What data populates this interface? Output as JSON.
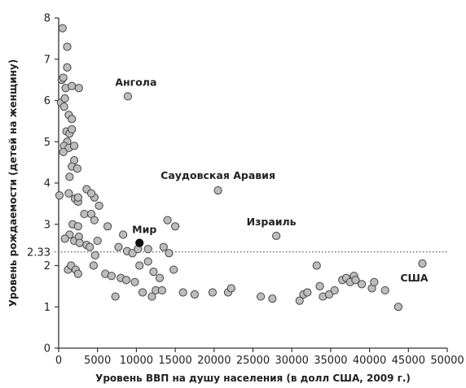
{
  "chart_data": {
    "type": "scatter",
    "title": "",
    "xlabel": "Уровень ВВП на душу населения (в долл США, 2009 г.)",
    "ylabel": "Уровень рождаемости (детей на женщину)",
    "xlim": [
      0,
      50000
    ],
    "ylim": [
      0,
      8
    ],
    "x_ticks": [
      0,
      5000,
      10000,
      15000,
      20000,
      25000,
      30000,
      35000,
      40000,
      45000,
      50000
    ],
    "y_ticks": [
      0,
      1,
      2,
      3,
      4,
      5,
      6,
      7,
      8
    ],
    "grid": false,
    "reference_line": {
      "y": 2.33,
      "label": "2.33",
      "style": "dotted"
    },
    "point_color": "#bdbdbd",
    "point_outline": "#444444",
    "highlight_color": "#111111",
    "highlight_point": {
      "label": "Мир",
      "x": 10400,
      "y": 2.55
    },
    "annotations": [
      {
        "text": "Ангола",
        "x": 8900,
        "y": 6.1
      },
      {
        "text": "Саудовская Аравия",
        "x": 20500,
        "y": 3.82
      },
      {
        "text": "Израиль",
        "x": 28000,
        "y": 2.72
      },
      {
        "text": "США",
        "x": 46800,
        "y": 2.05
      }
    ],
    "points": [
      [
        500,
        7.75
      ],
      [
        1100,
        7.3
      ],
      [
        1100,
        6.8
      ],
      [
        400,
        6.5
      ],
      [
        900,
        6.3
      ],
      [
        600,
        6.55
      ],
      [
        1700,
        6.35
      ],
      [
        2600,
        6.3
      ],
      [
        8900,
        6.1
      ],
      [
        300,
        5.95
      ],
      [
        800,
        6.05
      ],
      [
        700,
        5.85
      ],
      [
        1300,
        5.65
      ],
      [
        1700,
        5.55
      ],
      [
        1000,
        5.25
      ],
      [
        1400,
        5.2
      ],
      [
        1700,
        5.3
      ],
      [
        1100,
        5.0
      ],
      [
        700,
        4.9
      ],
      [
        1300,
        4.85
      ],
      [
        2000,
        4.9
      ],
      [
        600,
        4.75
      ],
      [
        2000,
        4.55
      ],
      [
        1700,
        4.4
      ],
      [
        2400,
        4.35
      ],
      [
        1400,
        4.15
      ],
      [
        3600,
        3.85
      ],
      [
        4600,
        3.65
      ],
      [
        1300,
        3.75
      ],
      [
        2100,
        3.62
      ],
      [
        2500,
        3.55
      ],
      [
        100,
        3.7
      ],
      [
        2500,
        3.65
      ],
      [
        4200,
        3.75
      ],
      [
        20500,
        3.82
      ],
      [
        5200,
        3.45
      ],
      [
        3300,
        3.25
      ],
      [
        4200,
        3.25
      ],
      [
        4600,
        3.1
      ],
      [
        6300,
        2.95
      ],
      [
        1800,
        3.0
      ],
      [
        2500,
        2.95
      ],
      [
        14000,
        3.1
      ],
      [
        15000,
        2.95
      ],
      [
        1400,
        2.75
      ],
      [
        800,
        2.65
      ],
      [
        2000,
        2.6
      ],
      [
        2600,
        2.7
      ],
      [
        2700,
        2.55
      ],
      [
        3600,
        2.5
      ],
      [
        4000,
        2.45
      ],
      [
        5000,
        2.6
      ],
      [
        7700,
        2.45
      ],
      [
        8300,
        2.75
      ],
      [
        8800,
        2.35
      ],
      [
        9500,
        2.3
      ],
      [
        10200,
        2.4
      ],
      [
        11500,
        2.4
      ],
      [
        13500,
        2.45
      ],
      [
        14200,
        2.3
      ],
      [
        28000,
        2.72
      ],
      [
        4700,
        2.25
      ],
      [
        10400,
        2.0
      ],
      [
        11500,
        2.1
      ],
      [
        12200,
        1.85
      ],
      [
        9800,
        1.6
      ],
      [
        13000,
        1.7
      ],
      [
        14800,
        1.9
      ],
      [
        8000,
        1.7
      ],
      [
        8700,
        1.65
      ],
      [
        6000,
        1.8
      ],
      [
        6800,
        1.75
      ],
      [
        1200,
        1.9
      ],
      [
        1600,
        2.0
      ],
      [
        2200,
        1.9
      ],
      [
        2500,
        1.8
      ],
      [
        4500,
        2.0
      ],
      [
        10800,
        1.35
      ],
      [
        12000,
        1.25
      ],
      [
        12500,
        1.4
      ],
      [
        13300,
        1.4
      ],
      [
        16000,
        1.35
      ],
      [
        17500,
        1.3
      ],
      [
        19800,
        1.35
      ],
      [
        21800,
        1.35
      ],
      [
        22200,
        1.45
      ],
      [
        26000,
        1.25
      ],
      [
        27500,
        1.2
      ],
      [
        31000,
        1.15
      ],
      [
        31500,
        1.3
      ],
      [
        32000,
        1.35
      ],
      [
        33200,
        2.0
      ],
      [
        33600,
        1.5
      ],
      [
        34000,
        1.25
      ],
      [
        34800,
        1.3
      ],
      [
        35500,
        1.4
      ],
      [
        36500,
        1.65
      ],
      [
        37000,
        1.7
      ],
      [
        37500,
        1.6
      ],
      [
        38000,
        1.75
      ],
      [
        38200,
        1.65
      ],
      [
        39000,
        1.55
      ],
      [
        40300,
        1.45
      ],
      [
        40600,
        1.6
      ],
      [
        42000,
        1.4
      ],
      [
        43700,
        1.0
      ],
      [
        46800,
        2.05
      ],
      [
        7300,
        1.25
      ]
    ]
  }
}
